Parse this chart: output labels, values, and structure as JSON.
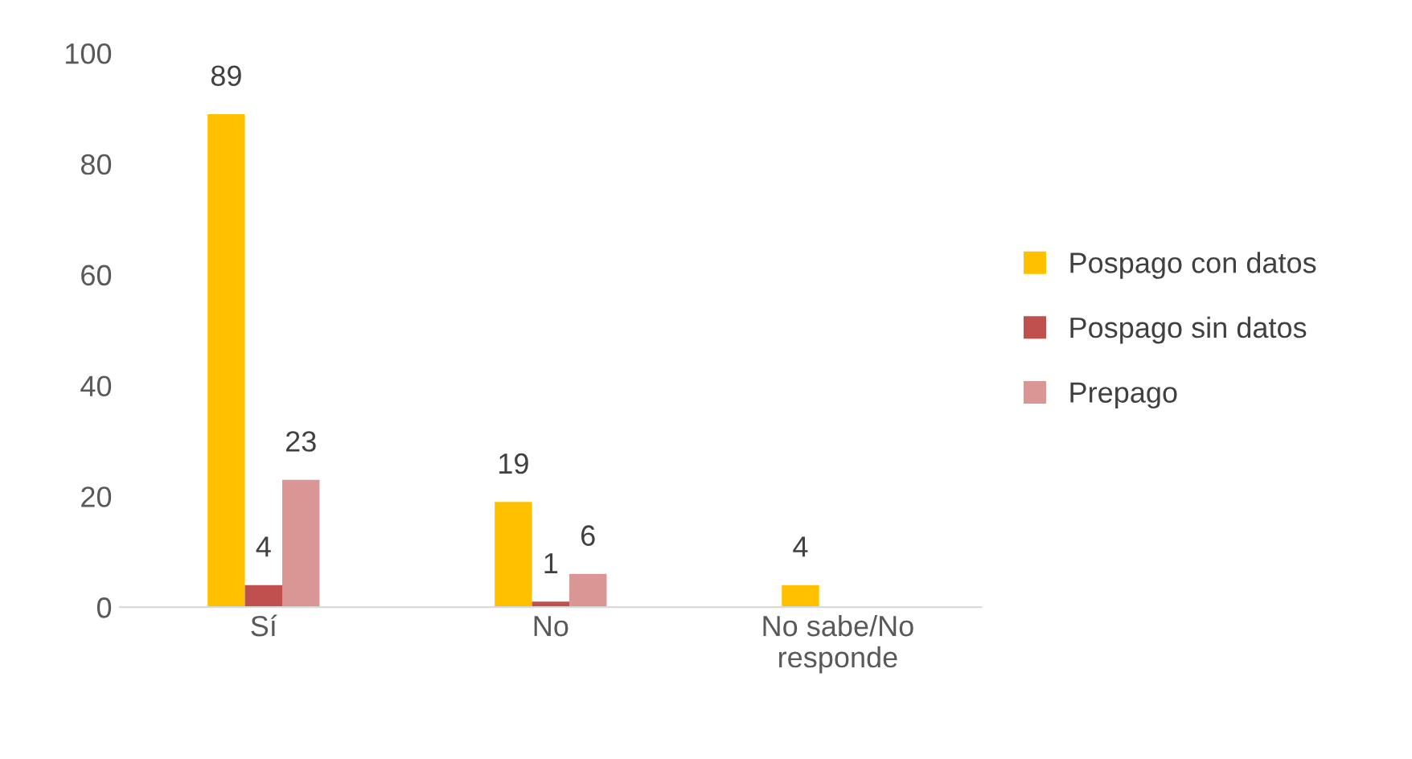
{
  "chart_data": {
    "type": "bar",
    "categories": [
      "Sí",
      "No",
      "No sabe/No\nresponde"
    ],
    "series": [
      {
        "name": "Pospago con datos",
        "color": "#ffc000",
        "values": [
          89,
          19,
          4
        ]
      },
      {
        "name": "Pospago sin datos",
        "color": "#c0504d",
        "values": [
          4,
          1,
          null
        ]
      },
      {
        "name": "Prepago",
        "color": "#d99694",
        "values": [
          23,
          6,
          null
        ]
      }
    ],
    "ylim": [
      0,
      100
    ],
    "yticks": [
      0,
      20,
      40,
      60,
      80,
      100
    ],
    "data_labels": true,
    "grid": false,
    "legend": "right"
  }
}
